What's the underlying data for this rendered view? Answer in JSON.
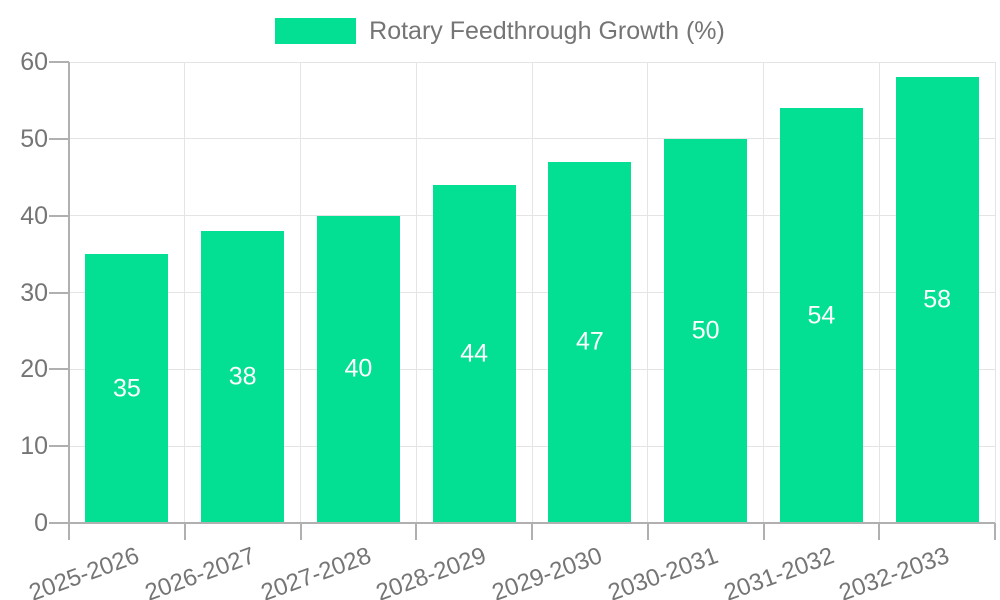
{
  "chart_data": {
    "type": "bar",
    "title": "",
    "legend": "Rotary Feedthrough Growth (%)",
    "legend_position": "top",
    "categories": [
      "2025-2026",
      "2026-2027",
      "2027-2028",
      "2028-2029",
      "2029-2030",
      "2030-2031",
      "2031-2032",
      "2032-2033"
    ],
    "values": [
      35,
      38,
      40,
      44,
      47,
      50,
      54,
      58
    ],
    "value_labels": [
      "35",
      "38",
      "40",
      "44",
      "47",
      "50",
      "54",
      "58"
    ],
    "yticks": [
      0,
      10,
      20,
      30,
      40,
      50,
      60
    ],
    "ylim": [
      0,
      60
    ],
    "xlabel": "",
    "ylabel": "",
    "grid": true,
    "colors": {
      "bar": "#04E093",
      "axis_text": "#757575",
      "value_label": "#ffffff",
      "grid_line": "#e4e4e4",
      "axis_line": "#b0b0b0"
    }
  }
}
